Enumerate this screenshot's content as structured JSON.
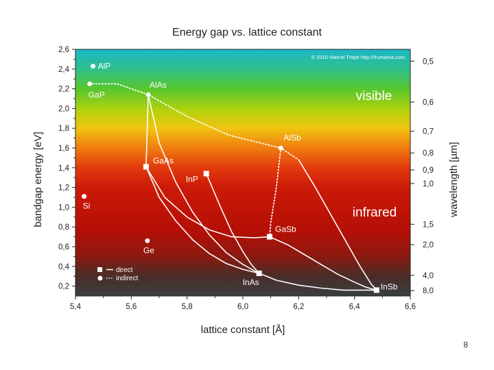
{
  "slide_number": "8",
  "chart_data": {
    "type": "scatter",
    "title": "Energy gap vs. lattice constant",
    "xlabel": "lattice constant [Å]",
    "ylabel": "bandgap energy [eV]",
    "y2label": "wavelength [µm]",
    "copyright": "© 2010 Marcel Tröpe http://frumania.com",
    "xlim": [
      5.4,
      6.6
    ],
    "ylim": [
      0.1,
      2.6
    ],
    "xticks": [
      "5,4",
      "5,6",
      "5,8",
      "6,0",
      "6,2",
      "6,4",
      "6,6"
    ],
    "yticks": [
      "0,2",
      "0,4",
      "0,6",
      "0,8",
      "1,0",
      "1,2",
      "1,4",
      "1,6",
      "1,8",
      "2,0",
      "2,2",
      "2,4",
      "2,6"
    ],
    "wavelength_ticks": [
      {
        "label": "0,5",
        "energy": 2.48
      },
      {
        "label": "0,6",
        "energy": 2.066
      },
      {
        "label": "0,7",
        "energy": 1.771
      },
      {
        "label": "0,8",
        "energy": 1.55
      },
      {
        "label": "0,9",
        "energy": 1.378
      },
      {
        "label": "1,0",
        "energy": 1.24
      },
      {
        "label": "1,5",
        "energy": 0.827
      },
      {
        "label": "2,0",
        "energy": 0.62
      },
      {
        "label": "4,0",
        "energy": 0.31
      },
      {
        "label": "8,0",
        "energy": 0.155
      }
    ],
    "region_labels": {
      "visible": "visible",
      "infrared": "infrared"
    },
    "legend": {
      "direct": "direct",
      "indirect": "indirect"
    },
    "points": [
      {
        "name": "AlP",
        "x": 5.463,
        "y": 2.43,
        "type": "indirect"
      },
      {
        "name": "GaP",
        "x": 5.451,
        "y": 2.25,
        "type": "indirect"
      },
      {
        "name": "AlAs",
        "x": 5.661,
        "y": 2.14,
        "type": "indirect"
      },
      {
        "name": "AlSb",
        "x": 6.136,
        "y": 1.6,
        "type": "indirect"
      },
      {
        "name": "Si",
        "x": 5.431,
        "y": 1.11,
        "type": "indirect"
      },
      {
        "name": "Ge",
        "x": 5.658,
        "y": 0.66,
        "type": "indirect"
      },
      {
        "name": "GaAs",
        "x": 5.653,
        "y": 1.41,
        "type": "direct"
      },
      {
        "name": "InP",
        "x": 5.869,
        "y": 1.34,
        "type": "direct"
      },
      {
        "name": "GaSb",
        "x": 6.096,
        "y": 0.7,
        "type": "direct"
      },
      {
        "name": "InAs",
        "x": 6.058,
        "y": 0.33,
        "type": "direct"
      },
      {
        "name": "InSb",
        "x": 6.479,
        "y": 0.16,
        "type": "direct"
      }
    ],
    "series": [
      {
        "name": "AlAs-GaAs",
        "style": "solid",
        "x": [
          5.661,
          5.653
        ],
        "y": [
          2.14,
          1.41
        ]
      },
      {
        "name": "AlAs-InAs (upper arc)",
        "style": "solid",
        "x": [
          5.661,
          5.7,
          5.76,
          5.82,
          5.88,
          5.94,
          6.0,
          6.058
        ],
        "y": [
          2.14,
          1.65,
          1.25,
          0.95,
          0.72,
          0.54,
          0.42,
          0.33
        ]
      },
      {
        "name": "GaAs-InAs",
        "style": "solid",
        "x": [
          5.653,
          5.7,
          5.76,
          5.82,
          5.88,
          5.94,
          6.0,
          6.058
        ],
        "y": [
          1.41,
          1.1,
          0.86,
          0.67,
          0.53,
          0.43,
          0.37,
          0.33
        ]
      },
      {
        "name": "GaAs-GaSb",
        "style": "solid",
        "x": [
          5.653,
          5.72,
          5.8,
          5.88,
          5.96,
          6.04,
          6.096
        ],
        "y": [
          1.41,
          1.1,
          0.9,
          0.77,
          0.7,
          0.69,
          0.7
        ]
      },
      {
        "name": "InP-InAs",
        "style": "solid",
        "x": [
          5.869,
          5.92,
          5.96,
          6.0,
          6.03,
          6.058
        ],
        "y": [
          1.34,
          1.0,
          0.75,
          0.55,
          0.42,
          0.33
        ]
      },
      {
        "name": "InAs-InSb",
        "style": "solid",
        "x": [
          6.058,
          6.12,
          6.2,
          6.28,
          6.36,
          6.42,
          6.479
        ],
        "y": [
          0.33,
          0.26,
          0.21,
          0.18,
          0.16,
          0.16,
          0.16
        ]
      },
      {
        "name": "GaSb-InSb",
        "style": "solid",
        "x": [
          6.096,
          6.16,
          6.22,
          6.28,
          6.34,
          6.4,
          6.44,
          6.479
        ],
        "y": [
          0.7,
          0.62,
          0.52,
          0.42,
          0.32,
          0.24,
          0.19,
          0.16
        ]
      },
      {
        "name": "AlSb-InSb",
        "style": "solid",
        "x": [
          6.2,
          6.26,
          6.32,
          6.38,
          6.42,
          6.46,
          6.479
        ],
        "y": [
          1.48,
          1.2,
          0.9,
          0.6,
          0.4,
          0.22,
          0.16
        ]
      },
      {
        "name": "GaP-AlAs-AlSb",
        "style": "dotted",
        "x": [
          5.451,
          5.55,
          5.661,
          5.8,
          5.95,
          6.136,
          6.2
        ],
        "y": [
          2.25,
          2.25,
          2.14,
          1.92,
          1.73,
          1.6,
          1.48
        ]
      },
      {
        "name": "AlSb-GaSb",
        "style": "dotted",
        "x": [
          6.136,
          6.12,
          6.1,
          6.096
        ],
        "y": [
          1.6,
          1.2,
          0.85,
          0.7
        ]
      }
    ]
  }
}
